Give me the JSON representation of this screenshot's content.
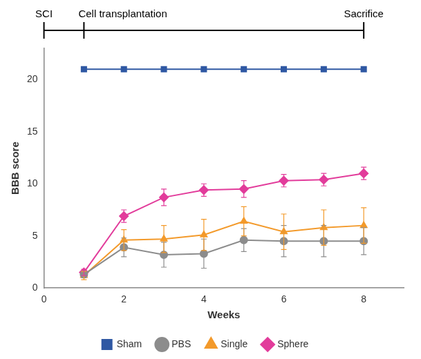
{
  "chart_data": {
    "type": "line",
    "timeline": [
      {
        "label": "SCI",
        "week": 0
      },
      {
        "label": "Cell transplantation",
        "week": 1
      },
      {
        "label": "Sacrifice",
        "week": 8
      }
    ],
    "x_label": "Weeks",
    "y_label": "BBB score",
    "x": [
      1,
      2,
      3,
      4,
      5,
      6,
      7,
      8
    ],
    "series": [
      {
        "name": "Sham",
        "color": "#2f58a3",
        "marker": "square",
        "values": [
          21,
          21,
          21,
          21,
          21,
          21,
          21,
          21
        ]
      },
      {
        "name": "PBS",
        "color": "#8c8c8c",
        "marker": "circle",
        "values": [
          1.3,
          3.9,
          3.2,
          3.3,
          4.6,
          4.5,
          4.5,
          4.5
        ],
        "errors": [
          0.3,
          0.9,
          1.2,
          1.4,
          1.1,
          1.5,
          1.5,
          1.3
        ]
      },
      {
        "name": "Single",
        "color": "#f39a2b",
        "marker": "triangle",
        "values": [
          1.2,
          4.6,
          4.7,
          5.1,
          6.4,
          5.4,
          5.8,
          6.0
        ],
        "errors": [
          0.4,
          1.0,
          1.3,
          1.5,
          1.4,
          1.7,
          1.7,
          1.7
        ]
      },
      {
        "name": "Sphere",
        "color": "#e23c9b",
        "marker": "diamond",
        "values": [
          1.5,
          6.9,
          8.7,
          9.4,
          9.5,
          10.3,
          10.4,
          11.0
        ],
        "errors": [
          0.3,
          0.6,
          0.8,
          0.6,
          0.8,
          0.6,
          0.6,
          0.6
        ]
      }
    ],
    "xlim": [
      0,
      9
    ],
    "xticks": [
      0,
      2,
      4,
      6,
      8
    ],
    "ylim": [
      0,
      23
    ],
    "yticks": [
      0,
      5,
      10,
      15,
      20
    ],
    "grid": false,
    "legend": "bottom"
  }
}
